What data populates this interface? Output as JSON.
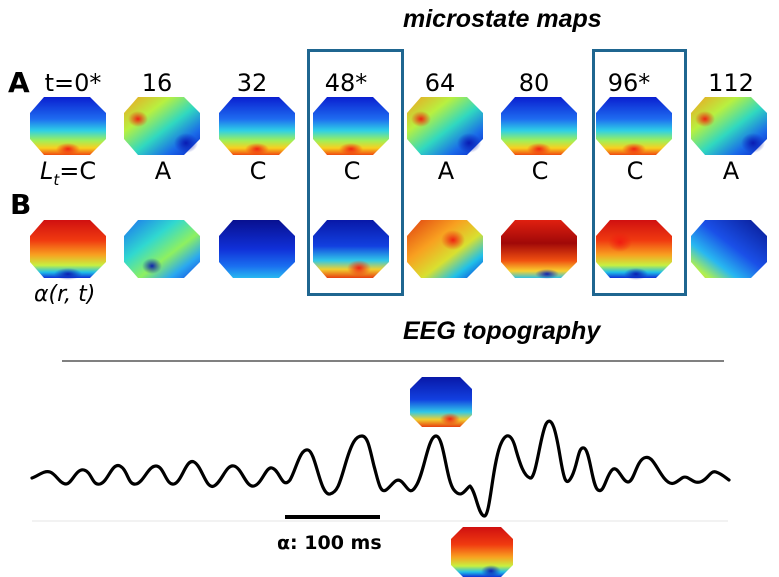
{
  "titles": {
    "maps": "microstate maps",
    "topography": "EEG topography"
  },
  "panels": {
    "a": "A",
    "b": "B"
  },
  "times": [
    "t=0*",
    "16",
    "32",
    "48*",
    "64",
    "80",
    "96*",
    "112"
  ],
  "labels_row": {
    "prefix": "L",
    "subscript": "t",
    "first_suffix": "=C",
    "labels": [
      "C",
      "A",
      "C",
      "C",
      "A",
      "C",
      "C",
      "A"
    ]
  },
  "alpha_label": "α(r, t)",
  "scale_bar": {
    "text": "α: 100 ms",
    "duration_ms": 100
  },
  "highlighted_columns": [
    3,
    6
  ],
  "colors": {
    "highlight_box": "#1f6690",
    "trace": "#000000",
    "rule": "#000000"
  }
}
